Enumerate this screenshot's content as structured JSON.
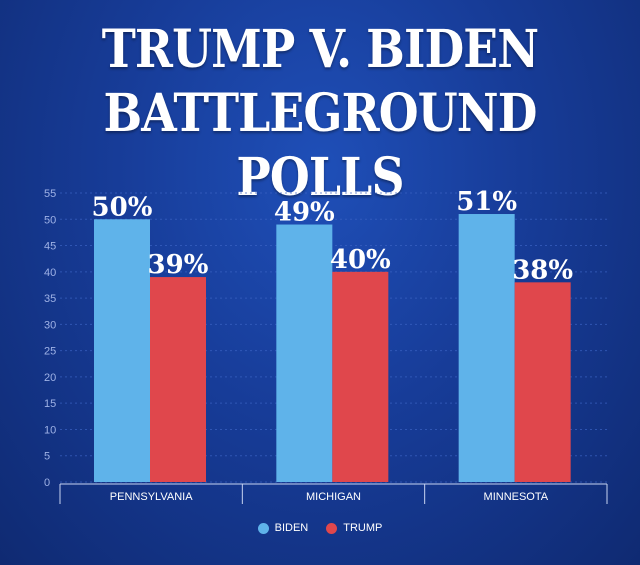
{
  "title": {
    "line1": "TRUMP V. BIDEN",
    "line2": "BATTLEGROUND POLLS"
  },
  "chart_data": {
    "type": "bar",
    "categories": [
      "PENNSYLVANIA",
      "MICHIGAN",
      "MINNESOTA"
    ],
    "series": [
      {
        "name": "BIDEN",
        "values": [
          50,
          49,
          51
        ],
        "labels": [
          "50%",
          "49%",
          "51%"
        ],
        "color": "#5fb3ea"
      },
      {
        "name": "TRUMP",
        "values": [
          39,
          40,
          38
        ],
        "labels": [
          "39%",
          "40%",
          "38%"
        ],
        "color": "#e0474c"
      }
    ],
    "ylim": [
      0,
      55
    ],
    "yticks": [
      0,
      5,
      10,
      15,
      20,
      25,
      30,
      35,
      40,
      45,
      50,
      55
    ],
    "grid": true,
    "legend_position": "bottom-center"
  }
}
